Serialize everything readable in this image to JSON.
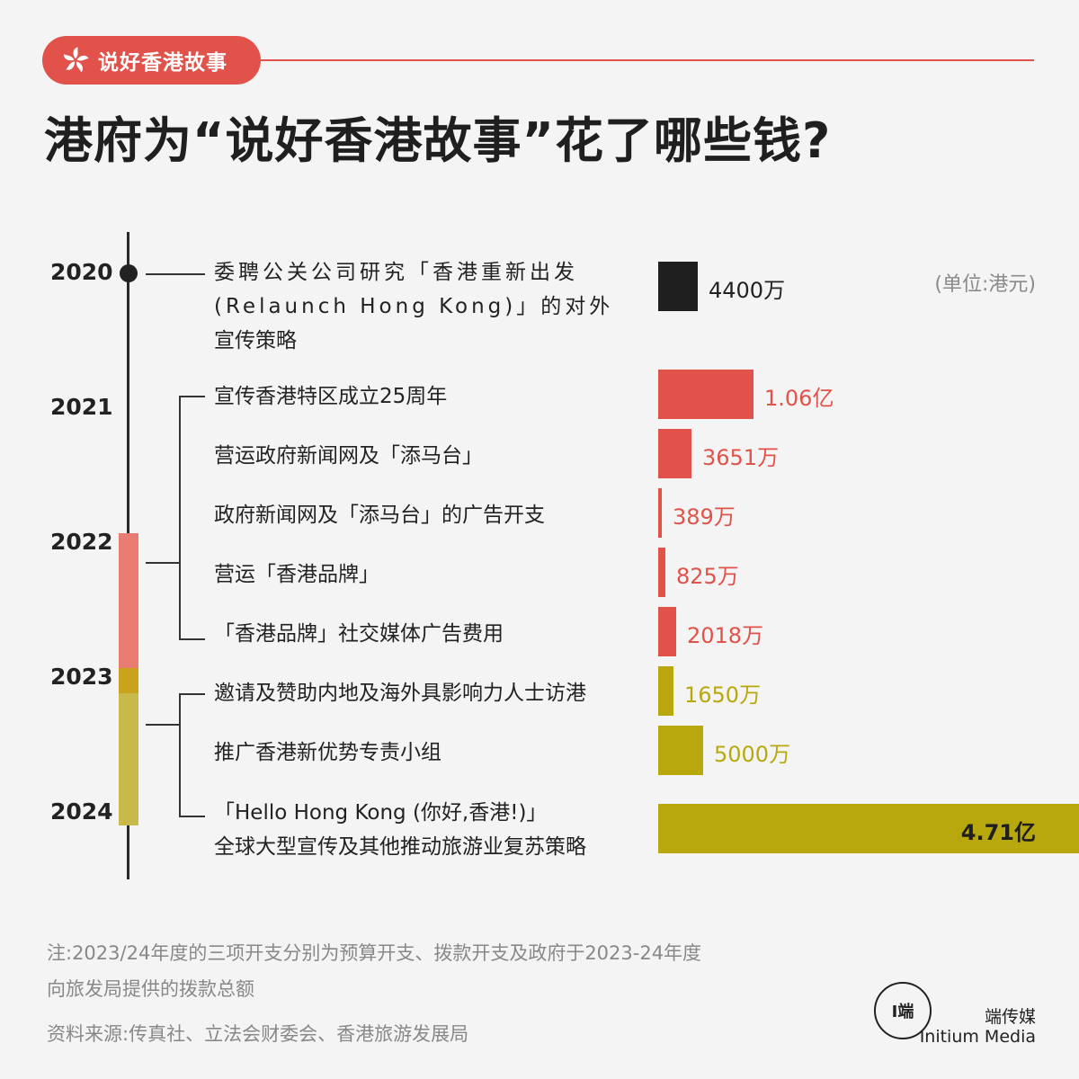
{
  "header": {
    "tag": "说好香港故事",
    "title": "港府为“说好香港故事”花了哪些钱?",
    "unit": "(单位:港元)"
  },
  "years": [
    "2020",
    "2021",
    "2022",
    "2023",
    "2024"
  ],
  "colors": {
    "black": "#1f1f1f",
    "red": "#e0524a",
    "olive": "#b8a80e",
    "red_segment": "#e87b72",
    "olive_segment": "#c7ba4a"
  },
  "chart_data": {
    "type": "bar",
    "unit": "港元",
    "items": [
      {
        "lines": [
          "委聘公关公司研究「香港重新出发",
          "(Relaunch Hong Kong)」的对外",
          "宣传策略"
        ],
        "value": 44000000,
        "label": "4400万",
        "year": "2020",
        "group": "black"
      },
      {
        "lines": [
          "宣传香港特区成立25周年"
        ],
        "value": 106000000,
        "label": "1.06亿",
        "year": "2022",
        "group": "red"
      },
      {
        "lines": [
          "营运政府新闻网及「添马台」"
        ],
        "value": 36510000,
        "label": "3651万",
        "year": "2022",
        "group": "red"
      },
      {
        "lines": [
          "政府新闻网及「添马台」的广告开支"
        ],
        "value": 3890000,
        "label": "389万",
        "year": "2022",
        "group": "red"
      },
      {
        "lines": [
          "营运「香港品牌」"
        ],
        "value": 8250000,
        "label": "825万",
        "year": "2022",
        "group": "red"
      },
      {
        "lines": [
          "「香港品牌」社交媒体广告费用"
        ],
        "value": 20180000,
        "label": "2018万",
        "year": "2022",
        "group": "red"
      },
      {
        "lines": [
          "邀请及赞助内地及海外具影响力人士访港"
        ],
        "value": 16500000,
        "label": "1650万",
        "year": "2023/24",
        "group": "olive"
      },
      {
        "lines": [
          "推广香港新优势专责小组"
        ],
        "value": 50000000,
        "label": "5000万",
        "year": "2023/24",
        "group": "olive"
      },
      {
        "lines": [
          "「Hello Hong Kong (你好,香港!)」",
          "全球大型宣传及其他推动旅游业复苏策略"
        ],
        "value": 471000000,
        "label": "4.71亿",
        "year": "2023/24",
        "group": "olive"
      }
    ]
  },
  "notes": {
    "line1": "注:2023/24年度的三项开支分别为预算开支、拨款开支及政府于2023-24年度",
    "line2": "向旅发局提供的拨款总额",
    "source": "资料来源:传真社、立法会财委会、香港旅游发展局"
  },
  "brand": {
    "logo_text": "I端",
    "name_cn": "端传媒",
    "name_en": "Initium Media"
  }
}
